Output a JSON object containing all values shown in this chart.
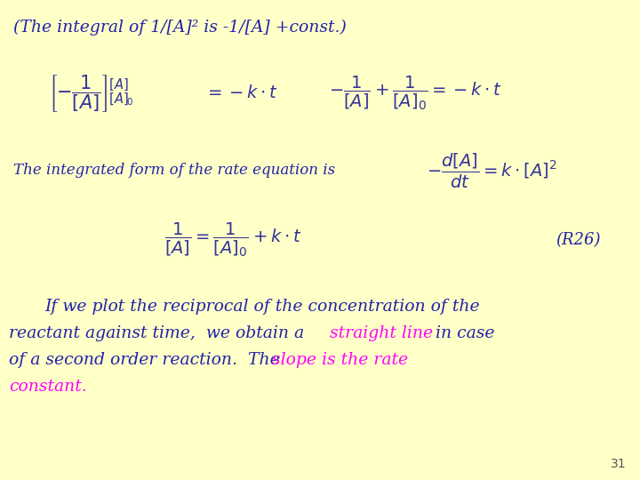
{
  "background_color": "#FFFFC8",
  "title_text": "(The integral of 1/[A]² is -1/[A] +const.)",
  "title_color": "#2222aa",
  "title_fontsize": 13.5,
  "label_text": "The integrated form of the rate equation is",
  "label_color": "#2222aa",
  "r26_text": "(R26)",
  "r26_color": "#2222aa",
  "highlight_color": "#FF00FF",
  "para_color": "#2222aa",
  "para_fontsize": 13.5,
  "page_number": "31",
  "page_color": "#555555",
  "math_color": "#333399"
}
